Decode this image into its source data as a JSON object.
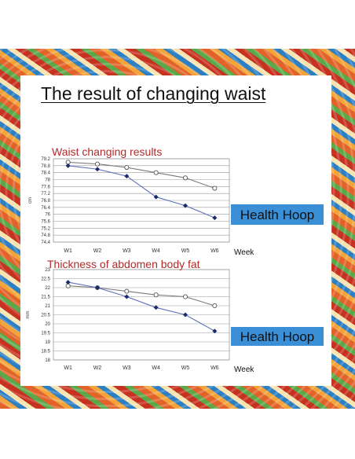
{
  "slide": {
    "title": "The result of changing waist"
  },
  "chart_data": [
    {
      "type": "line",
      "title": "Waist changing results",
      "xlabel": "Week",
      "ylabel": "cm",
      "categories": [
        "W1",
        "W2",
        "W3",
        "W4",
        "W5",
        "W6"
      ],
      "yticks": [
        "74.4",
        "74.8",
        "75.2",
        "75.6",
        "76",
        "76.4",
        "76.8",
        "77.2",
        "77.6",
        "78",
        "78.4",
        "78.8",
        "79.2"
      ],
      "ylim": [
        74.4,
        79.2
      ],
      "grid": true,
      "series": [
        {
          "name": "",
          "marker": "open-circle",
          "values": [
            79.0,
            78.9,
            78.7,
            78.4,
            78.1,
            77.5
          ]
        },
        {
          "name": "",
          "marker": "filled-diamond",
          "values": [
            78.8,
            78.6,
            78.2,
            77.0,
            76.5,
            75.8
          ]
        }
      ],
      "annotation": "Health Hoop"
    },
    {
      "type": "line",
      "title": "Thickness of abdomen body fat",
      "xlabel": "Week",
      "ylabel": "mm",
      "categories": [
        "W1",
        "W2",
        "W3",
        "W4",
        "W5",
        "W6"
      ],
      "yticks": [
        "18",
        "18.5",
        "19",
        "19.5",
        "20",
        "20.5",
        "21",
        "21.5",
        "22",
        "22.5",
        "23"
      ],
      "ylim": [
        18,
        23
      ],
      "grid": true,
      "series": [
        {
          "name": "",
          "marker": "open-circle",
          "values": [
            22.1,
            22.0,
            21.8,
            21.6,
            21.5,
            21.0
          ]
        },
        {
          "name": "",
          "marker": "filled-diamond",
          "values": [
            22.3,
            22.0,
            21.5,
            20.9,
            20.5,
            19.6
          ]
        }
      ],
      "annotation": "Health Hoop"
    }
  ]
}
